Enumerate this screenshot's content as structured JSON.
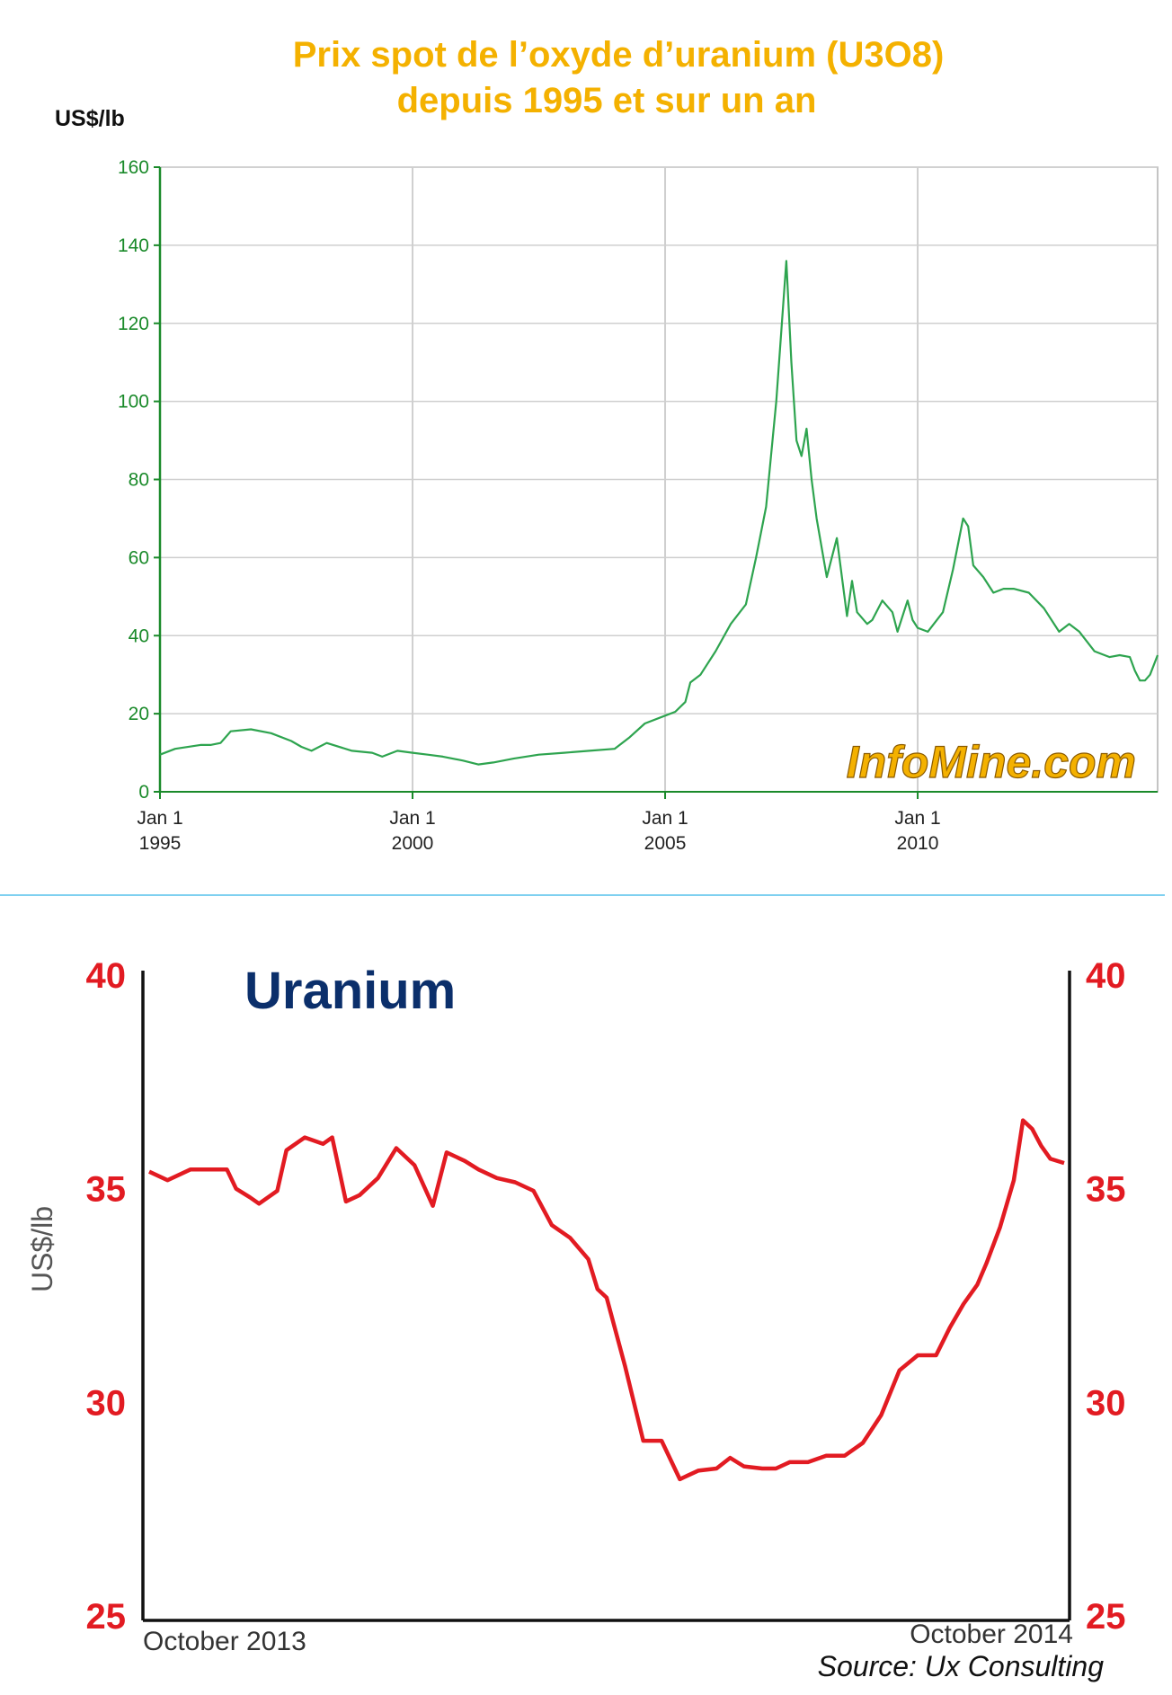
{
  "chart_data": [
    {
      "type": "line",
      "title": "Prix spot de l’oxyde d’uranium (U3O8)",
      "subtitle": "depuis 1995 et sur un an",
      "ylabel": "US$/lb",
      "watermark": "InfoMine.com",
      "ylim": [
        0,
        160
      ],
      "xlim": [
        1995.0,
        2014.75
      ],
      "yticks": [
        "0",
        "20",
        "40",
        "60",
        "80",
        "100",
        "120",
        "140",
        "160"
      ],
      "xticks": [
        {
          "x": 1995,
          "line1": "Jan 1",
          "line2": "1995"
        },
        {
          "x": 2000,
          "line1": "Jan 1",
          "line2": "2000"
        },
        {
          "x": 2005,
          "line1": "Jan 1",
          "line2": "2005"
        },
        {
          "x": 2010,
          "line1": "Jan 1",
          "line2": "2010"
        }
      ],
      "grid": true,
      "colors": {
        "line": "#2ea44f",
        "axis": "#1a8a2a",
        "grid": "#cccccc"
      },
      "x": [
        1995.0,
        1995.3,
        1995.8,
        1996.0,
        1996.2,
        1996.4,
        1996.8,
        1997.2,
        1997.6,
        1997.8,
        1998.0,
        1998.3,
        1998.8,
        1999.2,
        1999.4,
        1999.7,
        2000.0,
        2000.3,
        2000.6,
        2001.0,
        2001.3,
        2001.6,
        2002.0,
        2002.5,
        2003.0,
        2003.5,
        2004.0,
        2004.3,
        2004.6,
        2005.0,
        2005.2,
        2005.4,
        2005.5,
        2005.7,
        2006.0,
        2006.3,
        2006.6,
        2006.8,
        2007.0,
        2007.2,
        2007.3,
        2007.4,
        2007.5,
        2007.6,
        2007.7,
        2007.8,
        2007.9,
        2008.0,
        2008.2,
        2008.4,
        2008.6,
        2008.7,
        2008.8,
        2009.0,
        2009.1,
        2009.3,
        2009.5,
        2009.6,
        2009.8,
        2009.9,
        2010.0,
        2010.2,
        2010.5,
        2010.7,
        2010.9,
        2011.0,
        2011.1,
        2011.3,
        2011.5,
        2011.7,
        2011.9,
        2012.2,
        2012.5,
        2012.8,
        2013.0,
        2013.2,
        2013.5,
        2013.7,
        2013.8,
        2014.0,
        2014.2,
        2014.3,
        2014.4,
        2014.5,
        2014.6,
        2014.75
      ],
      "series": [
        {
          "values": [
            9.5,
            11,
            12,
            12,
            12.5,
            15.5,
            16,
            15,
            13,
            11.5,
            10.5,
            12.5,
            10.5,
            10,
            9,
            10.5,
            10,
            9.5,
            9,
            8,
            7,
            7.5,
            8.5,
            9.5,
            10,
            10.5,
            11,
            14,
            17.5,
            19.5,
            20.5,
            23,
            28,
            30,
            36,
            43,
            48,
            60,
            73,
            100,
            118,
            136,
            110,
            90,
            86,
            93,
            80,
            70,
            55,
            65,
            45,
            54,
            46,
            43,
            44,
            49,
            46,
            41,
            49,
            44,
            42,
            41,
            46,
            57,
            70,
            68,
            58,
            55,
            51,
            52,
            52,
            51,
            47,
            41,
            43,
            41,
            36,
            35,
            34.5,
            35,
            34.5,
            31,
            28.5,
            28.5,
            30,
            35
          ]
        }
      ]
    },
    {
      "type": "line",
      "title": "Uranium",
      "ylabel": "US$/lb",
      "ylim": [
        25,
        40
      ],
      "yticks": [
        "25",
        "30",
        "35",
        "40"
      ],
      "xlim": [
        0,
        100
      ],
      "xtick_labels": [
        "October 2013",
        "October 2014"
      ],
      "source": "Source: Ux Consulting",
      "colors": {
        "line": "#e21b22",
        "ticks": "#e21b22",
        "title": "#0b2f6b"
      },
      "x": [
        0,
        2,
        4.5,
        8,
        8.5,
        9.5,
        11,
        12,
        14,
        15,
        17,
        19,
        20,
        21.5,
        23,
        25,
        27,
        29,
        31,
        32.5,
        33.5,
        34.5,
        36,
        38,
        40,
        42,
        44,
        46,
        48,
        49,
        50,
        52,
        54,
        56,
        58,
        60,
        62,
        63.5,
        65,
        67,
        68.5,
        70,
        72,
        74,
        76,
        78,
        80,
        82,
        84,
        86,
        87.5,
        89,
        90.5,
        91.5,
        93,
        94.5,
        95.5,
        96.5,
        97.5,
        98.5,
        100
      ],
      "series": [
        {
          "values": [
            35.4,
            35.2,
            35.45,
            35.45,
            35.45,
            35.0,
            34.8,
            34.65,
            34.95,
            35.9,
            36.2,
            36.05,
            36.2,
            34.7,
            34.85,
            35.25,
            35.95,
            35.55,
            34.6,
            35.85,
            35.75,
            35.65,
            35.45,
            35.25,
            35.15,
            34.95,
            34.15,
            33.85,
            33.35,
            32.65,
            32.45,
            30.85,
            29.1,
            29.1,
            28.2,
            28.4,
            28.45,
            28.7,
            28.5,
            28.45,
            28.45,
            28.6,
            28.6,
            28.75,
            28.75,
            29.05,
            29.7,
            30.75,
            31.1,
            31.1,
            31.75,
            32.3,
            32.75,
            33.25,
            34.1,
            35.2,
            36.6,
            36.4,
            36.0,
            35.7,
            35.6
          ]
        }
      ]
    }
  ]
}
